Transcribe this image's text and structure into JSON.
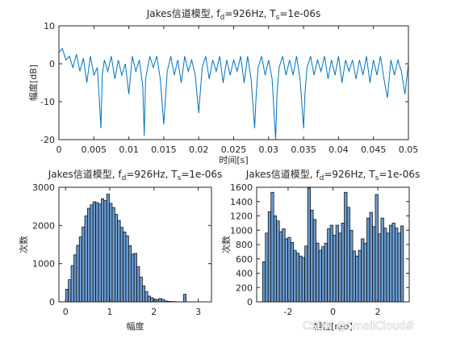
{
  "watermark": "CSDN @SmallCloud#",
  "colors": {
    "line": "#0072BD",
    "bar_fill": "#6b9bcf",
    "bar_edge": "#000000",
    "axis": "#262626"
  },
  "chart_data": [
    {
      "type": "line",
      "title_main": "Jakes信道模型, f",
      "title_sub1": "d",
      "title_mid": "=926Hz, T",
      "title_sub2": "s",
      "title_end": "=1e-06s",
      "xlabel": "时间[s]",
      "ylabel": "幅度[dB]",
      "xlim": [
        0,
        0.05
      ],
      "ylim": [
        -20,
        10
      ],
      "xticks": [
        "0",
        "0.005",
        "0.01",
        "0.015",
        "0.02",
        "0.025",
        "0.03",
        "0.035",
        "0.04",
        "0.045",
        "0.05"
      ],
      "yticks": [
        "-20",
        "-10",
        "0",
        "10"
      ],
      "grid": false,
      "x": [
        0,
        0.0005,
        0.001,
        0.0015,
        0.002,
        0.0025,
        0.003,
        0.0035,
        0.004,
        0.0045,
        0.005,
        0.0055,
        0.0058,
        0.006,
        0.0062,
        0.0065,
        0.007,
        0.0075,
        0.008,
        0.0085,
        0.009,
        0.0095,
        0.01,
        0.0105,
        0.011,
        0.0115,
        0.012,
        0.0122,
        0.0124,
        0.013,
        0.0135,
        0.014,
        0.0145,
        0.015,
        0.0155,
        0.016,
        0.0165,
        0.017,
        0.0175,
        0.018,
        0.0185,
        0.019,
        0.0195,
        0.02,
        0.0205,
        0.021,
        0.0215,
        0.022,
        0.0225,
        0.023,
        0.0235,
        0.024,
        0.0245,
        0.025,
        0.0255,
        0.026,
        0.0265,
        0.027,
        0.0275,
        0.028,
        0.0282,
        0.0285,
        0.029,
        0.0295,
        0.03,
        0.0305,
        0.031,
        0.0312,
        0.0315,
        0.032,
        0.0325,
        0.033,
        0.0335,
        0.034,
        0.0345,
        0.035,
        0.0352,
        0.0355,
        0.036,
        0.0365,
        0.037,
        0.0375,
        0.038,
        0.0385,
        0.039,
        0.0395,
        0.04,
        0.0405,
        0.041,
        0.0415,
        0.042,
        0.0425,
        0.043,
        0.0435,
        0.044,
        0.0445,
        0.045,
        0.0455,
        0.046,
        0.0465,
        0.047,
        0.0475,
        0.048,
        0.0485,
        0.049,
        0.0495,
        0.05
      ],
      "y": [
        3,
        4,
        1,
        2,
        -1,
        2.5,
        -2,
        1.5,
        -5,
        2,
        -3,
        -1,
        -10,
        -17,
        -3,
        1,
        -2,
        2,
        -4,
        1,
        -3,
        0,
        -8,
        2,
        -2,
        1,
        -6,
        -19,
        -4,
        2,
        -1,
        2,
        -4,
        -16,
        -2,
        2,
        -3,
        1,
        -5,
        2,
        -2,
        1,
        -3,
        -13,
        -1,
        2,
        -4,
        1,
        -2,
        2,
        -5,
        1,
        -3,
        1,
        -2,
        2,
        -5,
        2,
        -4,
        -17,
        -9,
        -1,
        2,
        -3,
        1,
        -4,
        -20,
        -8,
        -1,
        2,
        -3,
        1,
        -3,
        2,
        -4,
        -17,
        -8,
        -1,
        2,
        -3,
        1,
        -2,
        2,
        -4,
        1,
        -3,
        2,
        -5,
        1,
        -2,
        1,
        -4,
        1,
        -3,
        2,
        -5,
        1,
        -3,
        2,
        -4,
        -9,
        1,
        -3,
        1,
        -2,
        -8,
        0
      ]
    },
    {
      "type": "bar",
      "title_main": "Jakes信道模型, f",
      "title_sub1": "d",
      "title_mid": "=926Hz, T",
      "title_sub2": "s",
      "title_end": "=1e-06s",
      "xlabel": "幅度",
      "ylabel": "次数",
      "xlim": [
        -0.15,
        3.3
      ],
      "ylim": [
        0,
        3000
      ],
      "xticks": [
        "0",
        "1",
        "2",
        "3"
      ],
      "xtick_values": [
        0,
        1,
        2,
        3
      ],
      "yticks": [
        "0",
        "1000",
        "2000",
        "3000"
      ],
      "bin_edges_start": 0.0,
      "bin_width": 0.062,
      "values": [
        330,
        580,
        950,
        1230,
        1480,
        1700,
        1960,
        2250,
        2450,
        2540,
        2620,
        2600,
        2560,
        2700,
        2650,
        2820,
        2580,
        2470,
        2290,
        2130,
        1950,
        1830,
        1730,
        1470,
        1250,
        1270,
        920,
        650,
        420,
        270,
        150,
        110,
        70,
        60,
        90,
        65,
        25,
        15,
        10,
        8,
        5,
        4,
        3,
        200,
        3,
        2,
        2,
        1,
        1
      ]
    },
    {
      "type": "bar",
      "title_main": "Jakes信道模型, f",
      "title_sub1": "d",
      "title_mid": "=926Hz, T",
      "title_sub2": "s",
      "title_end": "=1e-06s",
      "xlabel": "相位[rad]",
      "ylabel": "次数",
      "xlim": [
        -3.4,
        3.4
      ],
      "ylim": [
        0,
        1600
      ],
      "xticks": [
        "-2",
        "0",
        "2"
      ],
      "xtick_values": [
        -2,
        0,
        2
      ],
      "yticks": [
        "0",
        "200",
        "400",
        "600",
        "800",
        "1000",
        "1200",
        "1400",
        "1600"
      ],
      "bin_edges_start": -3.14,
      "bin_width": 0.1257,
      "values": [
        560,
        960,
        1260,
        1530,
        1200,
        1130,
        980,
        1020,
        880,
        900,
        830,
        720,
        680,
        640,
        620,
        780,
        1590,
        1280,
        1150,
        820,
        720,
        770,
        820,
        1020,
        1070,
        930,
        1070,
        960,
        1100,
        1530,
        1320,
        1000,
        710,
        640,
        720,
        880,
        820,
        1170,
        1250,
        1050,
        1500,
        950,
        1170,
        1030,
        960,
        1070,
        1100,
        1030,
        960,
        1060
      ]
    }
  ]
}
